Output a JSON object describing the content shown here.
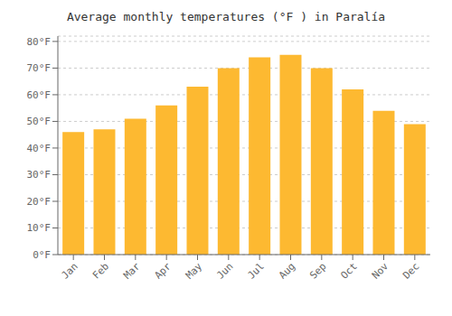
{
  "chart_data": {
    "type": "bar",
    "title": "Average monthly temperatures (°F ) in Paralía",
    "categories": [
      "Jan",
      "Feb",
      "Mar",
      "Apr",
      "May",
      "Jun",
      "Jul",
      "Aug",
      "Sep",
      "Oct",
      "Nov",
      "Dec"
    ],
    "values": [
      46,
      47,
      51,
      56,
      63,
      70,
      74,
      75,
      70,
      62,
      54,
      49
    ],
    "color": "#FDB931",
    "ylim": [
      0,
      82
    ],
    "yticks": [
      {
        "value": 0,
        "label": "0°F"
      },
      {
        "value": 10,
        "label": "10°F"
      },
      {
        "value": 20,
        "label": "20°F"
      },
      {
        "value": 30,
        "label": "30°F"
      },
      {
        "value": 40,
        "label": "40°F"
      },
      {
        "value": 50,
        "label": "50°F"
      },
      {
        "value": 60,
        "label": "60°F"
      },
      {
        "value": 70,
        "label": "70°F"
      },
      {
        "value": 80,
        "label": "80°F"
      }
    ],
    "grid": true
  }
}
